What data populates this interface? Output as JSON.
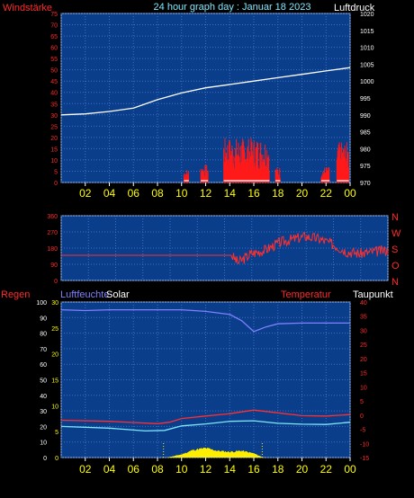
{
  "title": "24 hour graph day : Januar 18 2023",
  "colors": {
    "plot_bg": "#0a3d8a",
    "grid": "#3e6fc4",
    "axis_red": "#ff2a2a",
    "axis_yellow": "#ffff00",
    "white": "#ffffff",
    "cyan": "#7fe8ff",
    "purple": "#8080ff",
    "solar": "#ffee00"
  },
  "x_ticks": [
    "02",
    "04",
    "06",
    "08",
    "10",
    "12",
    "14",
    "16",
    "18",
    "20",
    "22",
    "00"
  ],
  "chart_data": [
    {
      "type": "line",
      "name": "wind-pressure",
      "left_label": "Windstärke",
      "right_label": "Luftdruck",
      "left_ticks": [
        "0",
        "5",
        "10",
        "15",
        "20",
        "25",
        "30",
        "35",
        "40",
        "45",
        "50",
        "55",
        "60",
        "65",
        "70",
        "75"
      ],
      "right_ticks": [
        "970",
        "975",
        "980",
        "985",
        "990",
        "995",
        "1000",
        "1005",
        "1010",
        "1015",
        "1020"
      ],
      "ylim_left": [
        0,
        75
      ],
      "ylim_right": [
        970,
        1020
      ],
      "pressure_points": [
        [
          0,
          990
        ],
        [
          2,
          990.3
        ],
        [
          4,
          991
        ],
        [
          6,
          992
        ],
        [
          8,
          994.5
        ],
        [
          10,
          996.5
        ],
        [
          12,
          998
        ],
        [
          14,
          999
        ],
        [
          16,
          1000
        ],
        [
          18,
          1001
        ],
        [
          20,
          1002
        ],
        [
          22,
          1003
        ],
        [
          24,
          1004
        ]
      ],
      "wind_gust_blocks": [
        {
          "start": 10.2,
          "end": 10.6,
          "max": 6
        },
        {
          "start": 11.6,
          "end": 12.2,
          "max": 8
        },
        {
          "start": 13.5,
          "end": 17.3,
          "max": 20
        },
        {
          "start": 17.8,
          "end": 18.2,
          "max": 7
        },
        {
          "start": 21.6,
          "end": 22.3,
          "max": 7
        },
        {
          "start": 22.9,
          "end": 23.9,
          "max": 18
        }
      ]
    },
    {
      "type": "line",
      "name": "wind-direction",
      "left_ticks": [
        "0",
        "90",
        "180",
        "270",
        "360"
      ],
      "right_ticks": [
        "N",
        "O",
        "S",
        "W",
        "N"
      ],
      "ylim": [
        0,
        360
      ],
      "direction_points": [
        [
          0,
          140
        ],
        [
          12.5,
          140
        ],
        [
          13,
          100
        ],
        [
          14,
          150
        ],
        [
          15,
          170
        ],
        [
          16,
          210
        ],
        [
          17,
          230
        ],
        [
          18,
          245
        ],
        [
          19,
          230
        ],
        [
          20,
          200
        ],
        [
          21,
          160
        ],
        [
          22,
          150
        ],
        [
          23,
          160
        ],
        [
          24,
          170
        ]
      ]
    },
    {
      "type": "line",
      "name": "humidity-solar-temperature",
      "left_label": "Regen",
      "label_humidity": "Luftfeuchte",
      "label_solar": "Solar",
      "label_temperature": "Temperatur",
      "label_dewpoint": "Taupunkt",
      "humidity_ticks": [
        "0",
        "10",
        "20",
        "30",
        "40",
        "50",
        "60",
        "70",
        "80",
        "90",
        "100"
      ],
      "solar_ticks": [
        "0",
        "5",
        "10",
        "15",
        "20",
        "25",
        "30"
      ],
      "temperature_ticks": [
        "-15",
        "-10",
        "-5",
        "0",
        "5",
        "10",
        "15",
        "20",
        "25",
        "30",
        "35",
        "40"
      ],
      "ylim_humidity": [
        0,
        100
      ],
      "ylim_temperature": [
        -15,
        40
      ],
      "humidity_points": [
        [
          0,
          95
        ],
        [
          2,
          94.5
        ],
        [
          4,
          95
        ],
        [
          6,
          95
        ],
        [
          8,
          95
        ],
        [
          10,
          95
        ],
        [
          12,
          94
        ],
        [
          14,
          92
        ],
        [
          15,
          88
        ],
        [
          16,
          81
        ],
        [
          17,
          84
        ],
        [
          18,
          86
        ],
        [
          20,
          86.5
        ],
        [
          22,
          86.5
        ],
        [
          24,
          86.5
        ]
      ],
      "temperature_points": [
        [
          0,
          -1.8
        ],
        [
          4,
          -2.2
        ],
        [
          8,
          -3
        ],
        [
          9,
          -2.5
        ],
        [
          10,
          -1.2
        ],
        [
          12,
          -0.3
        ],
        [
          14,
          0.5
        ],
        [
          16,
          1.8
        ],
        [
          18,
          0.8
        ],
        [
          20,
          -0.2
        ],
        [
          22,
          -0.3
        ],
        [
          24,
          0.2
        ]
      ],
      "dewpoint_points": [
        [
          0,
          -4
        ],
        [
          4,
          -4.6
        ],
        [
          7,
          -5.6
        ],
        [
          8.6,
          -5.4
        ],
        [
          10,
          -3.8
        ],
        [
          12,
          -3.1
        ],
        [
          14,
          -2.2
        ],
        [
          16,
          -2
        ],
        [
          18,
          -2.9
        ],
        [
          20,
          -3.2
        ],
        [
          22,
          -3.3
        ],
        [
          24,
          -2.5
        ]
      ],
      "solar_points": [
        [
          8.7,
          0
        ],
        [
          9.2,
          0.2
        ],
        [
          10,
          0.6
        ],
        [
          11,
          1.5
        ],
        [
          12,
          1.8
        ],
        [
          13,
          1.3
        ],
        [
          14,
          1.1
        ],
        [
          15,
          1.3
        ],
        [
          16,
          0.8
        ],
        [
          16.7,
          0.1
        ],
        [
          17,
          0
        ]
      ]
    }
  ]
}
